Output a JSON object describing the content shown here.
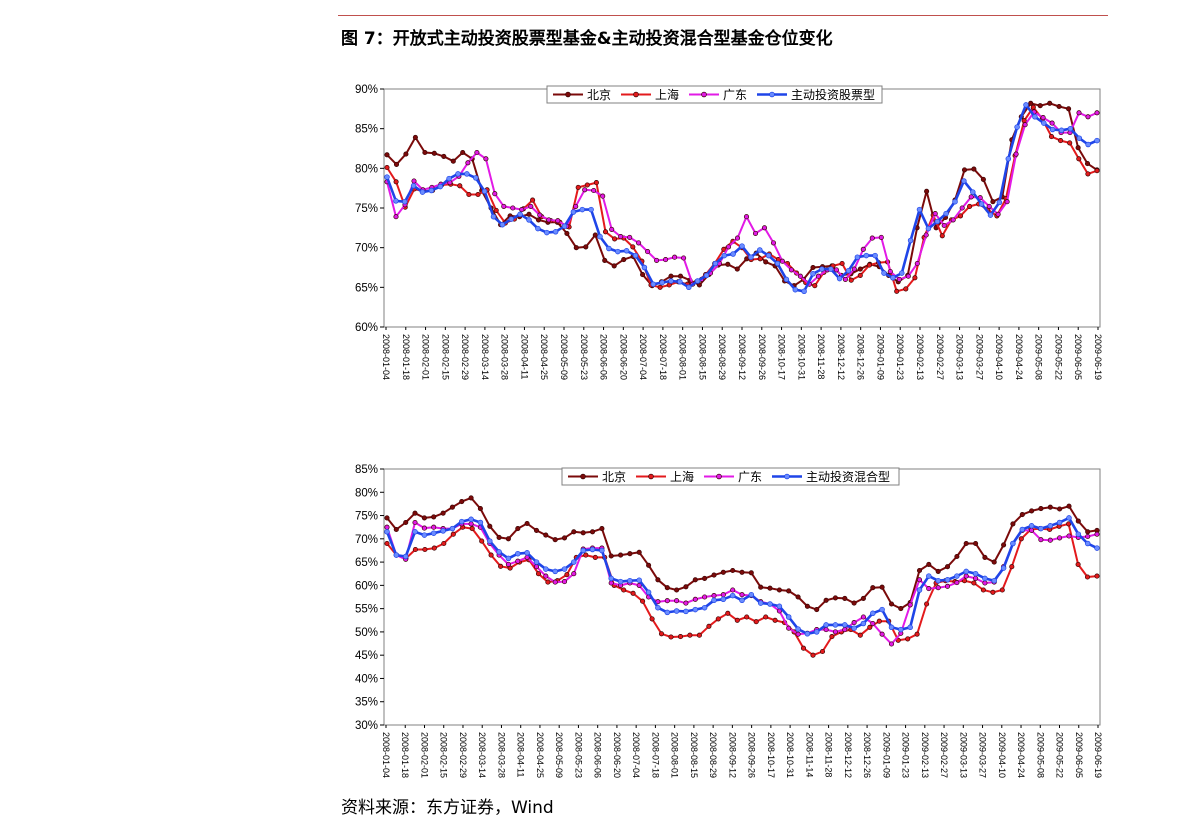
{
  "title": "图 7：开放式主动投资股票型基金&主动投资混合型基金仓位变化",
  "source": "资料来源：东方证券，Wind",
  "x_labels": [
    "2008-01-04",
    "2008-01-18",
    "2008-02-01",
    "2008-02-15",
    "2008-02-29",
    "2008-03-14",
    "2008-03-28",
    "2008-04-11",
    "2008-04-25",
    "2008-05-09",
    "2008-05-23",
    "2008-06-06",
    "2008-06-20",
    "2008-07-04",
    "2008-07-18",
    "2008-08-01",
    "2008-08-15",
    "2008-08-29",
    "2008-09-12",
    "2008-09-26",
    "2008-10-17",
    "2008-10-31",
    "2008-11-14",
    "2008-11-28",
    "2008-12-12",
    "2008-12-26",
    "2009-01-09",
    "2009-01-23",
    "2009-02-13",
    "2009-02-27",
    "2009-03-13",
    "2009-03-27",
    "2009-04-10",
    "2009-04-24",
    "2009-05-08",
    "2009-05-22",
    "2009-06-05",
    "2009-06-19"
  ],
  "chart_data": [
    {
      "type": "line",
      "title": "",
      "xlabel": "",
      "ylabel": "",
      "ylim": [
        0.6,
        0.9
      ],
      "yticks": [
        "60%",
        "65%",
        "70%",
        "75%",
        "80%",
        "85%",
        "90%"
      ],
      "x_tick_labels": [
        "2008-01-04",
        "2008-01-18",
        "2008-02-01",
        "2008-02-15",
        "2008-02-29",
        "2008-03-14",
        "2008-03-28",
        "2008-04-11",
        "2008-04-25",
        "2008-05-09",
        "2008-05-23",
        "2008-06-06",
        "2008-06-20",
        "2008-07-04",
        "2008-07-18",
        "2008-08-01",
        "2008-08-15",
        "2008-08-29",
        "2008-09-12",
        "2008-09-26",
        "2008-10-17",
        "2008-10-31",
        "2008-11-28",
        "2008-12-12",
        "2008-12-26",
        "2009-01-09",
        "2009-01-23",
        "2009-02-13",
        "2009-02-27",
        "2009-03-13",
        "2009-03-27",
        "2009-04-10",
        "2009-04-24",
        "2009-05-08",
        "2009-05-22",
        "2009-06-05",
        "2009-06-19"
      ],
      "grid": false,
      "legend_position": "top",
      "series": [
        {
          "name": "北京",
          "color": "#7b0a0a",
          "values": [
            0.817,
            0.805,
            0.818,
            0.839,
            0.82,
            0.819,
            0.815,
            0.809,
            0.82,
            0.812,
            0.772,
            0.75,
            0.729,
            0.74,
            0.739,
            0.742,
            0.735,
            0.732,
            0.732,
            0.718,
            0.7,
            0.701,
            0.716,
            0.684,
            0.677,
            0.685,
            0.689,
            0.666,
            0.652,
            0.657,
            0.664,
            0.664,
            0.659,
            0.653,
            0.666,
            0.678,
            0.679,
            0.673,
            0.686,
            0.693,
            0.682,
            0.677,
            0.658,
            0.652,
            0.66,
            0.675,
            0.676,
            0.677,
            0.665,
            0.667,
            0.673,
            0.679,
            0.676,
            0.665,
            0.657,
            0.665,
            0.725,
            0.771,
            0.725,
            0.738,
            0.76,
            0.798,
            0.799,
            0.786,
            0.758,
            0.764,
            0.836,
            0.865,
            0.882,
            0.879,
            0.882,
            0.878,
            0.875,
            0.826,
            0.806,
            0.798
          ]
        },
        {
          "name": "上海",
          "color": "#e31a1c",
          "values": [
            0.801,
            0.783,
            0.751,
            0.774,
            0.771,
            0.772,
            0.779,
            0.78,
            0.778,
            0.767,
            0.767,
            0.773,
            0.747,
            0.731,
            0.736,
            0.749,
            0.76,
            0.739,
            0.734,
            0.732,
            0.726,
            0.776,
            0.779,
            0.782,
            0.72,
            0.711,
            0.712,
            0.701,
            0.683,
            0.653,
            0.65,
            0.653,
            0.657,
            0.654,
            0.657,
            0.666,
            0.68,
            0.698,
            0.708,
            0.7,
            0.685,
            0.686,
            0.692,
            0.685,
            0.68,
            0.668,
            0.656,
            0.652,
            0.669,
            0.677,
            0.68,
            0.659,
            0.665,
            0.678,
            0.681,
            0.682,
            0.645,
            0.648,
            0.662,
            0.713,
            0.741,
            0.715,
            0.735,
            0.74,
            0.752,
            0.755,
            0.748,
            0.74,
            0.762,
            0.816,
            0.86,
            0.877,
            0.862,
            0.84,
            0.835,
            0.832,
            0.812,
            0.793,
            0.797
          ]
        },
        {
          "name": "广东",
          "color": "#e21ae6",
          "values": [
            0.783,
            0.739,
            0.754,
            0.784,
            0.773,
            0.776,
            0.78,
            0.782,
            0.79,
            0.807,
            0.82,
            0.812,
            0.768,
            0.752,
            0.75,
            0.748,
            0.752,
            0.741,
            0.735,
            0.734,
            0.727,
            0.752,
            0.773,
            0.772,
            0.765,
            0.723,
            0.714,
            0.713,
            0.706,
            0.695,
            0.684,
            0.685,
            0.688,
            0.687,
            0.654,
            0.66,
            0.668,
            0.68,
            0.701,
            0.712,
            0.739,
            0.718,
            0.725,
            0.706,
            0.683,
            0.672,
            0.664,
            0.654,
            0.664,
            0.672,
            0.672,
            0.66,
            0.673,
            0.698,
            0.712,
            0.713,
            0.67,
            0.66,
            0.664,
            0.68,
            0.716,
            0.743,
            0.728,
            0.735,
            0.75,
            0.764,
            0.763,
            0.752,
            0.742,
            0.758,
            0.818,
            0.855,
            0.871,
            0.864,
            0.857,
            0.845,
            0.845,
            0.87,
            0.865,
            0.87
          ]
        },
        {
          "name": "主动投资股票型",
          "color": "#1f45e8",
          "values": [
            0.789,
            0.759,
            0.758,
            0.778,
            0.77,
            0.772,
            0.777,
            0.787,
            0.793,
            0.793,
            0.788,
            0.771,
            0.739,
            0.729,
            0.736,
            0.742,
            0.735,
            0.724,
            0.719,
            0.72,
            0.727,
            0.745,
            0.748,
            0.748,
            0.714,
            0.699,
            0.695,
            0.696,
            0.69,
            0.675,
            0.654,
            0.656,
            0.658,
            0.657,
            0.65,
            0.658,
            0.665,
            0.68,
            0.69,
            0.692,
            0.702,
            0.688,
            0.697,
            0.69,
            0.68,
            0.66,
            0.647,
            0.645,
            0.667,
            0.673,
            0.673,
            0.661,
            0.671,
            0.688,
            0.69,
            0.69,
            0.668,
            0.662,
            0.668,
            0.709,
            0.748,
            0.724,
            0.733,
            0.743,
            0.758,
            0.784,
            0.77,
            0.755,
            0.741,
            0.757,
            0.812,
            0.852,
            0.88,
            0.865,
            0.857,
            0.849,
            0.848,
            0.85,
            0.838,
            0.83,
            0.835
          ]
        }
      ]
    },
    {
      "type": "line",
      "title": "",
      "xlabel": "",
      "ylabel": "",
      "ylim": [
        0.3,
        0.85
      ],
      "yticks": [
        "30%",
        "35%",
        "40%",
        "45%",
        "50%",
        "55%",
        "60%",
        "65%",
        "70%",
        "75%",
        "80%",
        "85%"
      ],
      "x_tick_labels": [
        "2008-01-04",
        "2008-01-18",
        "2008-02-01",
        "2008-02-15",
        "2008-02-29",
        "2008-03-14",
        "2008-03-28",
        "2008-04-11",
        "2008-04-25",
        "2008-05-09",
        "2008-05-23",
        "2008-06-06",
        "2008-06-20",
        "2008-07-04",
        "2008-07-18",
        "2008-08-01",
        "2008-08-15",
        "2008-08-29",
        "2008-09-12",
        "2008-09-26",
        "2008-10-17",
        "2008-10-31",
        "2008-11-14",
        "2008-11-28",
        "2008-12-12",
        "2008-12-26",
        "2009-01-09",
        "2009-01-23",
        "2009-02-13",
        "2009-02-27",
        "2009-03-13",
        "2009-03-27",
        "2009-04-10",
        "2009-04-24",
        "2009-05-08",
        "2009-05-22",
        "2009-06-05",
        "2009-06-19"
      ],
      "grid": false,
      "legend_position": "top",
      "series": [
        {
          "name": "北京",
          "color": "#7b0a0a",
          "values": [
            0.745,
            0.72,
            0.735,
            0.755,
            0.745,
            0.747,
            0.755,
            0.768,
            0.78,
            0.788,
            0.765,
            0.727,
            0.703,
            0.7,
            0.722,
            0.733,
            0.718,
            0.708,
            0.698,
            0.702,
            0.715,
            0.713,
            0.715,
            0.722,
            0.663,
            0.665,
            0.668,
            0.671,
            0.643,
            0.612,
            0.595,
            0.59,
            0.597,
            0.612,
            0.615,
            0.622,
            0.628,
            0.632,
            0.628,
            0.627,
            0.596,
            0.594,
            0.59,
            0.588,
            0.575,
            0.555,
            0.548,
            0.568,
            0.573,
            0.572,
            0.562,
            0.572,
            0.595,
            0.596,
            0.56,
            0.55,
            0.563,
            0.632,
            0.645,
            0.63,
            0.64,
            0.662,
            0.69,
            0.69,
            0.66,
            0.65,
            0.687,
            0.732,
            0.752,
            0.76,
            0.765,
            0.768,
            0.764,
            0.77,
            0.738,
            0.715,
            0.718
          ]
        },
        {
          "name": "上海",
          "color": "#e31a1c",
          "values": [
            0.69,
            0.665,
            0.658,
            0.677,
            0.677,
            0.68,
            0.69,
            0.71,
            0.725,
            0.722,
            0.695,
            0.665,
            0.641,
            0.637,
            0.65,
            0.655,
            0.625,
            0.607,
            0.61,
            0.623,
            0.66,
            0.665,
            0.66,
            0.66,
            0.6,
            0.59,
            0.583,
            0.566,
            0.528,
            0.496,
            0.489,
            0.49,
            0.493,
            0.493,
            0.512,
            0.528,
            0.54,
            0.525,
            0.532,
            0.522,
            0.532,
            0.525,
            0.52,
            0.5,
            0.465,
            0.45,
            0.458,
            0.49,
            0.5,
            0.505,
            0.493,
            0.51,
            0.523,
            0.523,
            0.482,
            0.485,
            0.495,
            0.56,
            0.605,
            0.61,
            0.608,
            0.61,
            0.605,
            0.59,
            0.585,
            0.59,
            0.64,
            0.7,
            0.72,
            0.722,
            0.72,
            0.727,
            0.732,
            0.645,
            0.618,
            0.62
          ]
        },
        {
          "name": "广东",
          "color": "#e21ae6",
          "values": [
            0.725,
            0.665,
            0.656,
            0.735,
            0.723,
            0.725,
            0.722,
            0.722,
            0.732,
            0.732,
            0.725,
            0.69,
            0.665,
            0.645,
            0.652,
            0.66,
            0.64,
            0.62,
            0.607,
            0.608,
            0.625,
            0.678,
            0.68,
            0.68,
            0.605,
            0.6,
            0.605,
            0.6,
            0.575,
            0.565,
            0.567,
            0.567,
            0.562,
            0.57,
            0.575,
            0.578,
            0.58,
            0.59,
            0.58,
            0.578,
            0.565,
            0.56,
            0.545,
            0.508,
            0.495,
            0.497,
            0.505,
            0.505,
            0.5,
            0.505,
            0.52,
            0.532,
            0.518,
            0.495,
            0.474,
            0.497,
            0.558,
            0.612,
            0.593,
            0.595,
            0.598,
            0.606,
            0.62,
            0.615,
            0.605,
            0.607,
            0.64,
            0.69,
            0.718,
            0.718,
            0.698,
            0.697,
            0.702,
            0.706,
            0.703,
            0.705,
            0.71
          ]
        },
        {
          "name": "主动投资混合型",
          "color": "#1f45e8",
          "values": [
            0.715,
            0.665,
            0.662,
            0.715,
            0.708,
            0.712,
            0.717,
            0.722,
            0.737,
            0.742,
            0.735,
            0.695,
            0.672,
            0.658,
            0.668,
            0.67,
            0.65,
            0.635,
            0.63,
            0.635,
            0.65,
            0.675,
            0.677,
            0.675,
            0.615,
            0.608,
            0.61,
            0.611,
            0.585,
            0.552,
            0.542,
            0.545,
            0.544,
            0.548,
            0.552,
            0.568,
            0.57,
            0.578,
            0.568,
            0.58,
            0.562,
            0.56,
            0.555,
            0.532,
            0.506,
            0.496,
            0.5,
            0.515,
            0.515,
            0.515,
            0.508,
            0.518,
            0.54,
            0.548,
            0.51,
            0.505,
            0.51,
            0.59,
            0.62,
            0.61,
            0.612,
            0.62,
            0.63,
            0.625,
            0.615,
            0.61,
            0.637,
            0.69,
            0.72,
            0.728,
            0.722,
            0.728,
            0.735,
            0.745,
            0.71,
            0.69,
            0.68
          ]
        }
      ]
    }
  ]
}
